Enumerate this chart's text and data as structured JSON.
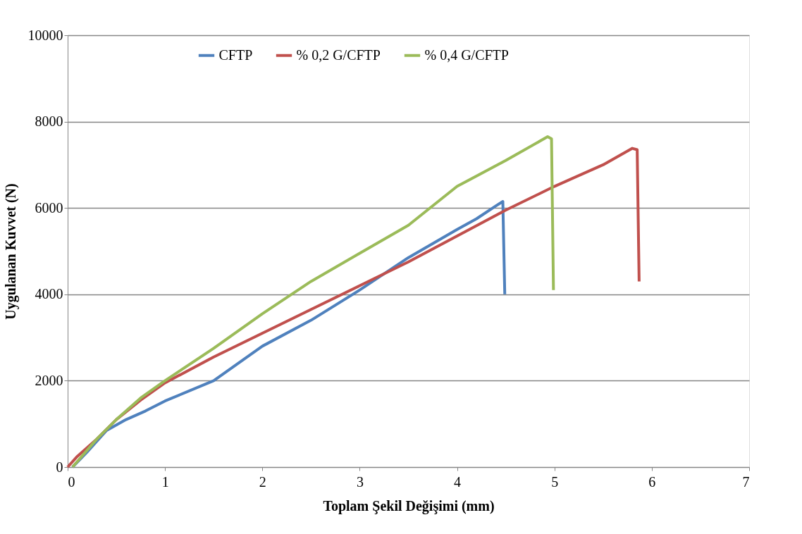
{
  "chart_data": {
    "type": "line",
    "xlabel": "Toplam Şekil Değişimi (mm)",
    "ylabel": "Uygulanan Kuvvet (N)",
    "xlim": [
      0,
      7
    ],
    "xticks": [
      0,
      1,
      2,
      3,
      4,
      5,
      6,
      7
    ],
    "ylim": [
      0,
      10000
    ],
    "yticks": [
      0,
      2000,
      4000,
      6000,
      8000,
      10000
    ],
    "grid": "y",
    "legend": "top",
    "marker": "none",
    "line_style": "solid",
    "series": [
      {
        "name": "CFTP",
        "color": "#4f81bd",
        "x": [
          0.05,
          0.2,
          0.4,
          0.6,
          0.8,
          1,
          1.5,
          2,
          2.5,
          3,
          3.5,
          4,
          4.2,
          4.4,
          4.47,
          4.49
        ],
        "values": [
          0,
          350,
          850,
          1100,
          1300,
          1530,
          2000,
          2800,
          3400,
          4100,
          4850,
          5500,
          5750,
          6050,
          6150,
          4000
        ]
      },
      {
        "name": "% 0,2 G/CFTP",
        "color": "#c0504d",
        "x": [
          0,
          0.1,
          0.3,
          0.5,
          0.75,
          1,
          1.5,
          2,
          2.5,
          3,
          3.5,
          4,
          4.5,
          5,
          5.5,
          5.8,
          5.85,
          5.87
        ],
        "values": [
          0,
          250,
          650,
          1100,
          1550,
          1950,
          2550,
          3100,
          3650,
          4200,
          4750,
          5350,
          5950,
          6500,
          7000,
          7380,
          7350,
          4300
        ]
      },
      {
        "name": "% 0,4 G/CFTP",
        "color": "#9bbb59",
        "x": [
          0.05,
          0.3,
          0.5,
          0.75,
          1,
          1.5,
          2,
          2.5,
          3,
          3.5,
          4,
          4.5,
          4.93,
          4.97,
          4.99
        ],
        "values": [
          0,
          650,
          1100,
          1600,
          2000,
          2750,
          3550,
          4300,
          4950,
          5600,
          6500,
          7100,
          7650,
          7600,
          4100
        ]
      }
    ]
  }
}
